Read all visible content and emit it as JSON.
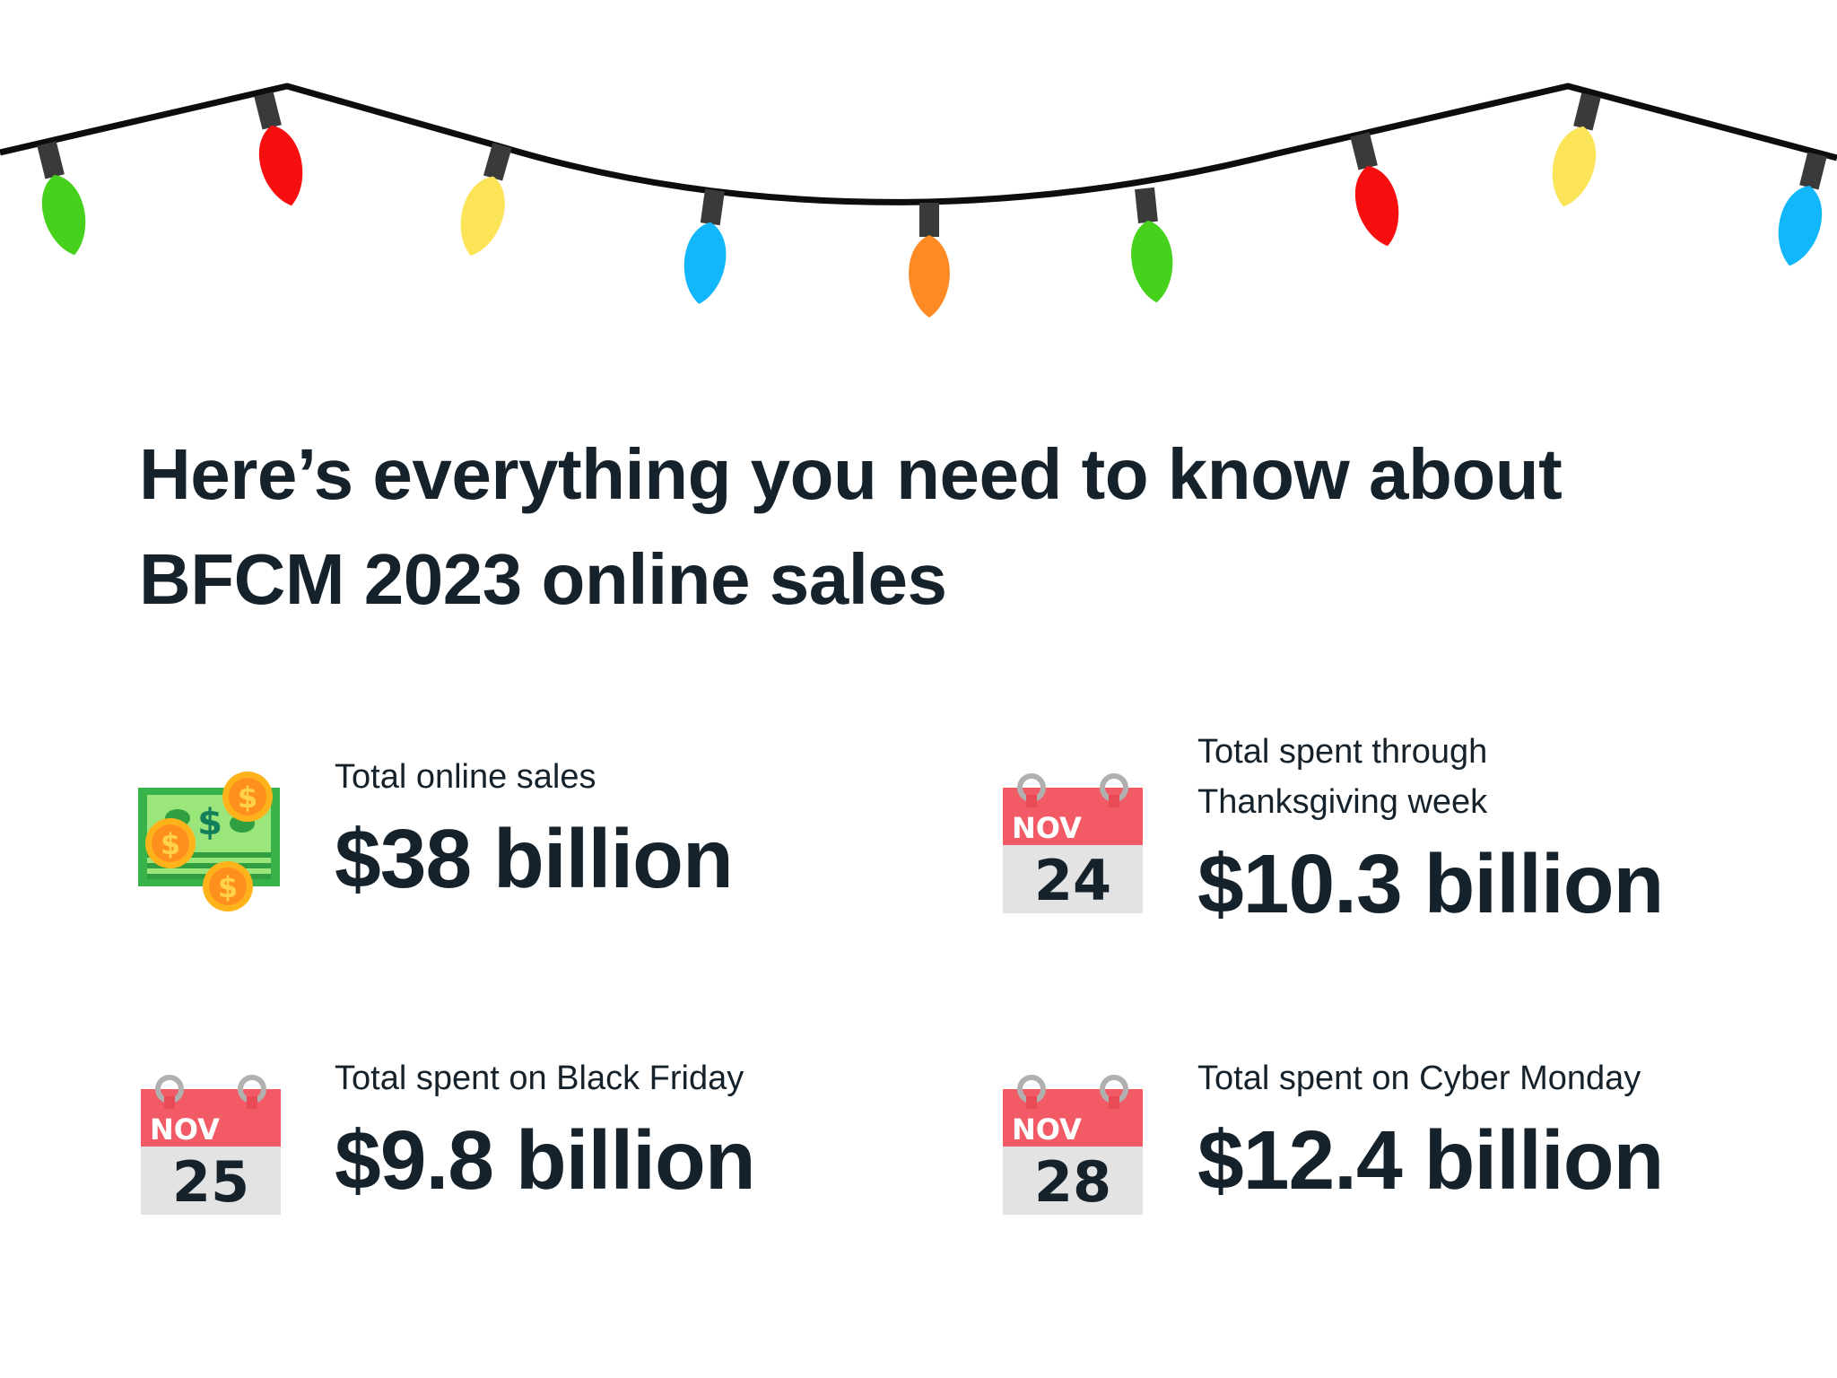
{
  "headline": {
    "line1": "Here’s everything you need to know about",
    "line2": "BFCM 2023 online sales"
  },
  "stats": [
    {
      "label": "Total online sales",
      "value": "$38 billion",
      "icon": "money-icon"
    },
    {
      "label_line1": "Total spent through",
      "label_line2": "Thanksgiving week",
      "value": "$10.3 billion",
      "icon": "calendar-icon",
      "cal_month": "NOV",
      "cal_day": "24"
    },
    {
      "label": "Total spent on Black Friday",
      "value": "$9.8 billion",
      "icon": "calendar-icon",
      "cal_month": "NOV",
      "cal_day": "25"
    },
    {
      "label": "Total spent on Cyber Monday",
      "value": "$12.4 billion",
      "icon": "calendar-icon",
      "cal_month": "NOV",
      "cal_day": "28"
    }
  ],
  "colors": {
    "text": "#16222b",
    "calendar_header": "#f25b66",
    "calendar_body": "#e3e3e3",
    "bulb_green": "#45d11c",
    "bulb_red": "#f70f0f",
    "bulb_yellow": "#fce459",
    "bulb_blue": "#12b7fb",
    "bulb_orange": "#fd8a25"
  }
}
